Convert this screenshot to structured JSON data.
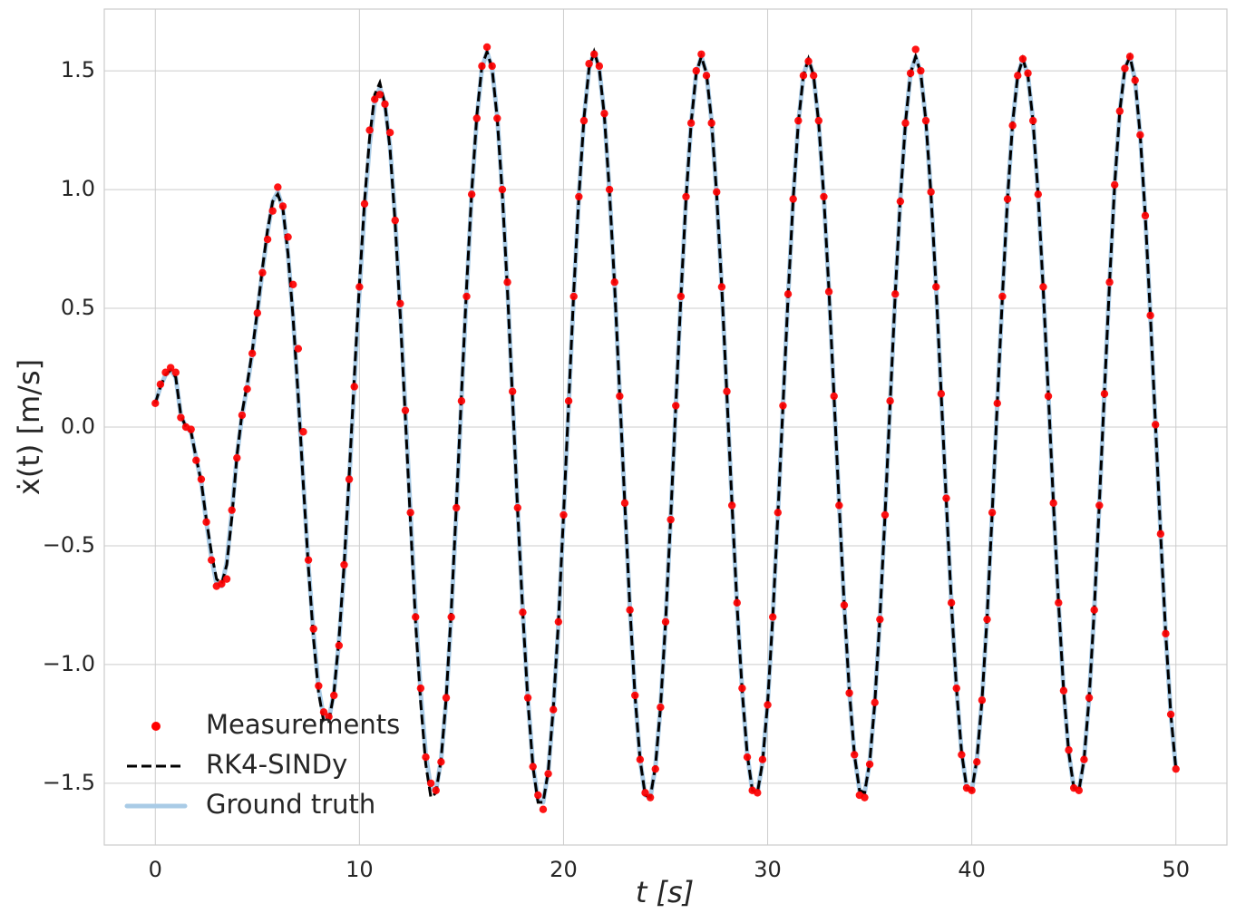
{
  "chart_data": {
    "type": "line",
    "xlabel": "ẋ(t) [m/s]",
    "xaxis_label": "t [s]",
    "xlim": [
      -2.5,
      52.5
    ],
    "xticks": [
      0,
      10,
      20,
      30,
      40,
      50
    ],
    "ylim": [
      -1.76,
      1.76
    ],
    "yticks": [
      {
        "value": -1.5,
        "label": "−1.5"
      },
      {
        "value": -1.0,
        "label": "−1.0"
      },
      {
        "value": -0.5,
        "label": "−0.5"
      },
      {
        "value": 0.0,
        "label": "0.0"
      },
      {
        "value": 0.5,
        "label": "0.5"
      },
      {
        "value": 1.0,
        "label": "1.0"
      },
      {
        "value": 1.5,
        "label": "1.5"
      }
    ],
    "grid": true,
    "legend": "lower left",
    "x": [
      0,
      0.25,
      0.5,
      0.75,
      1,
      1.25,
      1.5,
      1.75,
      2,
      2.25,
      2.5,
      2.75,
      3,
      3.25,
      3.5,
      3.75,
      4,
      4.25,
      4.5,
      4.75,
      5,
      5.25,
      5.5,
      5.75,
      6,
      6.25,
      6.5,
      6.75,
      7,
      7.25,
      7.5,
      7.75,
      8,
      8.25,
      8.5,
      8.75,
      9,
      9.25,
      9.5,
      9.75,
      10,
      10.25,
      10.5,
      10.75,
      11,
      11.25,
      11.5,
      11.75,
      12,
      12.25,
      12.5,
      12.75,
      13,
      13.25,
      13.5,
      13.75,
      14,
      14.25,
      14.5,
      14.75,
      15,
      15.25,
      15.5,
      15.75,
      16,
      16.25,
      16.5,
      16.75,
      17,
      17.25,
      17.5,
      17.75,
      18,
      18.25,
      18.5,
      18.75,
      19,
      19.25,
      19.5,
      19.75,
      20,
      20.25,
      20.5,
      20.75,
      21,
      21.25,
      21.5,
      21.75,
      22,
      22.25,
      22.5,
      22.75,
      23,
      23.25,
      23.5,
      23.75,
      24,
      24.25,
      24.5,
      24.75,
      25,
      25.25,
      25.5,
      25.75,
      26,
      26.25,
      26.5,
      26.75,
      27,
      27.25,
      27.5,
      27.75,
      28,
      28.25,
      28.5,
      28.75,
      29,
      29.25,
      29.5,
      29.75,
      30,
      30.25,
      30.5,
      30.75,
      31,
      31.25,
      31.5,
      31.75,
      32,
      32.25,
      32.5,
      32.75,
      33,
      33.25,
      33.5,
      33.75,
      34,
      34.25,
      34.5,
      34.75,
      35,
      35.25,
      35.5,
      35.75,
      36,
      36.25,
      36.5,
      36.75,
      37,
      37.25,
      37.5,
      37.75,
      38,
      38.25,
      38.5,
      38.75,
      39,
      39.25,
      39.5,
      39.75,
      40,
      40.25,
      40.5,
      40.75,
      41,
      41.25,
      41.5,
      41.75,
      42,
      42.25,
      42.5,
      42.75,
      43,
      43.25,
      43.5,
      43.75,
      44,
      44.25,
      44.5,
      44.75,
      45,
      45.25,
      45.5,
      45.75,
      46,
      46.25,
      46.5,
      46.75,
      47,
      47.25,
      47.5,
      47.75,
      48,
      48.25,
      48.5,
      48.75,
      49,
      49.25,
      49.5,
      49.75,
      50
    ],
    "series": [
      {
        "name": "Ground truth",
        "color": "#a9cbe6",
        "linestyle": "solid",
        "values": [
          0.1,
          0.17,
          0.22,
          0.24,
          0.21,
          0.05,
          0.0,
          -0.02,
          -0.13,
          -0.23,
          -0.4,
          -0.55,
          -0.66,
          -0.67,
          -0.57,
          -0.36,
          -0.12,
          0.05,
          0.17,
          0.31,
          0.48,
          0.66,
          0.82,
          0.95,
          0.99,
          0.92,
          0.73,
          0.46,
          0.13,
          -0.23,
          -0.58,
          -0.87,
          -1.1,
          -1.22,
          -1.23,
          -1.12,
          -0.9,
          -0.6,
          -0.22,
          0.18,
          0.57,
          0.92,
          1.19,
          1.37,
          1.43,
          1.36,
          1.18,
          0.88,
          0.5,
          0.07,
          -0.36,
          -0.78,
          -1.12,
          -1.38,
          -1.52,
          -1.53,
          -1.4,
          -1.15,
          -0.79,
          -0.35,
          0.12,
          0.57,
          0.98,
          1.3,
          1.51,
          1.58,
          1.51,
          1.31,
          0.99,
          0.59,
          0.13,
          -0.34,
          -0.77,
          -1.14,
          -1.42,
          -1.57,
          -1.58,
          -1.45,
          -1.19,
          -0.83,
          -0.38,
          0.09,
          0.56,
          0.97,
          1.3,
          1.51,
          1.58,
          1.51,
          1.31,
          0.99,
          0.6,
          0.14,
          -0.32,
          -0.76,
          -1.13,
          -1.4,
          -1.55,
          -1.56,
          -1.43,
          -1.18,
          -0.82,
          -0.38,
          0.09,
          0.55,
          0.96,
          1.28,
          1.49,
          1.56,
          1.49,
          1.29,
          0.98,
          0.59,
          0.14,
          -0.32,
          -0.75,
          -1.11,
          -1.38,
          -1.53,
          -1.54,
          -1.41,
          -1.16,
          -0.8,
          -0.37,
          0.09,
          0.55,
          0.96,
          1.28,
          1.48,
          1.55,
          1.48,
          1.28,
          0.97,
          0.58,
          0.13,
          -0.32,
          -0.75,
          -1.11,
          -1.38,
          -1.53,
          -1.54,
          -1.41,
          -1.16,
          -0.8,
          -0.37,
          0.1,
          0.56,
          0.96,
          1.28,
          1.49,
          1.56,
          1.49,
          1.29,
          0.98,
          0.59,
          0.14,
          -0.31,
          -0.74,
          -1.1,
          -1.37,
          -1.52,
          -1.53,
          -1.4,
          -1.15,
          -0.8,
          -0.36,
          0.1,
          0.55,
          0.96,
          1.28,
          1.48,
          1.55,
          1.48,
          1.29,
          0.98,
          0.58,
          0.14,
          -0.32,
          -0.74,
          -1.11,
          -1.37,
          -1.52,
          -1.53,
          -1.4,
          -1.14,
          -0.77,
          -0.32,
          0.15,
          0.61,
          1.02,
          1.33,
          1.51,
          1.56,
          1.46,
          1.23,
          0.89,
          0.47,
          0.01,
          -0.45,
          -0.87,
          -1.21,
          -1.44
        ]
      },
      {
        "name": "RK4-SINDy",
        "color": "#000000",
        "linestyle": "dashed",
        "values": [
          0.1,
          0.17,
          0.22,
          0.24,
          0.21,
          0.05,
          0.0,
          -0.02,
          -0.13,
          -0.23,
          -0.39,
          -0.53,
          -0.64,
          -0.66,
          -0.58,
          -0.38,
          -0.12,
          0.06,
          0.18,
          0.32,
          0.49,
          0.67,
          0.83,
          0.95,
          0.98,
          0.92,
          0.73,
          0.46,
          0.13,
          -0.24,
          -0.59,
          -0.89,
          -1.12,
          -1.24,
          -1.24,
          -1.12,
          -0.89,
          -0.58,
          -0.2,
          0.21,
          0.6,
          0.95,
          1.22,
          1.4,
          1.45,
          1.36,
          1.17,
          0.86,
          0.47,
          0.04,
          -0.4,
          -0.82,
          -1.16,
          -1.42,
          -1.56,
          -1.54,
          -1.4,
          -1.14,
          -0.77,
          -0.33,
          0.14,
          0.59,
          0.99,
          1.31,
          1.52,
          1.58,
          1.51,
          1.3,
          0.98,
          0.58,
          0.12,
          -0.35,
          -0.78,
          -1.15,
          -1.43,
          -1.58,
          -1.58,
          -1.45,
          -1.18,
          -0.82,
          -0.37,
          0.1,
          0.57,
          0.97,
          1.3,
          1.51,
          1.58,
          1.51,
          1.31,
          0.99,
          0.6,
          0.14,
          -0.32,
          -0.76,
          -1.13,
          -1.4,
          -1.55,
          -1.56,
          -1.43,
          -1.18,
          -0.82,
          -0.38,
          0.09,
          0.55,
          0.96,
          1.28,
          1.49,
          1.56,
          1.49,
          1.29,
          0.98,
          0.59,
          0.14,
          -0.32,
          -0.75,
          -1.11,
          -1.38,
          -1.53,
          -1.54,
          -1.41,
          -1.16,
          -0.8,
          -0.37,
          0.09,
          0.55,
          0.96,
          1.28,
          1.48,
          1.55,
          1.48,
          1.28,
          0.97,
          0.58,
          0.13,
          -0.32,
          -0.75,
          -1.11,
          -1.38,
          -1.53,
          -1.54,
          -1.41,
          -1.16,
          -0.8,
          -0.37,
          0.1,
          0.56,
          0.96,
          1.28,
          1.49,
          1.56,
          1.49,
          1.29,
          0.98,
          0.59,
          0.14,
          -0.31,
          -0.74,
          -1.1,
          -1.37,
          -1.52,
          -1.53,
          -1.4,
          -1.15,
          -0.8,
          -0.36,
          0.1,
          0.55,
          0.96,
          1.28,
          1.48,
          1.55,
          1.48,
          1.29,
          0.98,
          0.58,
          0.14,
          -0.32,
          -0.74,
          -1.11,
          -1.37,
          -1.52,
          -1.53,
          -1.4,
          -1.14,
          -0.77,
          -0.32,
          0.15,
          0.61,
          1.02,
          1.33,
          1.51,
          1.56,
          1.46,
          1.23,
          0.89,
          0.47,
          0.01,
          -0.45,
          -0.87,
          -1.21,
          -1.44
        ]
      },
      {
        "name": "Measurements",
        "color": "#ff0000",
        "linestyle": "none",
        "values": [
          0.1,
          0.18,
          0.23,
          0.25,
          0.23,
          0.04,
          0.0,
          -0.01,
          -0.14,
          -0.22,
          -0.4,
          -0.56,
          -0.67,
          -0.66,
          -0.64,
          -0.35,
          -0.13,
          0.05,
          0.16,
          0.31,
          0.48,
          0.65,
          0.79,
          0.91,
          1.01,
          0.93,
          0.8,
          0.6,
          0.33,
          -0.02,
          -0.56,
          -0.85,
          -1.09,
          -1.2,
          -1.22,
          -1.13,
          -0.92,
          -0.58,
          -0.22,
          0.17,
          0.59,
          0.94,
          1.25,
          1.38,
          1.4,
          1.36,
          1.24,
          0.87,
          0.52,
          0.07,
          -0.36,
          -0.8,
          -1.1,
          -1.39,
          -1.5,
          -1.53,
          -1.41,
          -1.14,
          -0.8,
          -0.34,
          0.11,
          0.55,
          0.98,
          1.3,
          1.52,
          1.6,
          1.52,
          1.3,
          1.0,
          0.61,
          0.15,
          -0.34,
          -0.78,
          -1.14,
          -1.43,
          -1.55,
          -1.61,
          -1.46,
          -1.19,
          -0.82,
          -0.37,
          0.11,
          0.55,
          0.97,
          1.29,
          1.53,
          1.57,
          1.52,
          1.32,
          1.0,
          0.61,
          0.13,
          -0.32,
          -0.77,
          -1.13,
          -1.4,
          -1.54,
          -1.56,
          -1.44,
          -1.18,
          -0.82,
          -0.39,
          0.09,
          0.55,
          0.97,
          1.28,
          1.5,
          1.57,
          1.48,
          1.28,
          0.99,
          0.59,
          0.15,
          -0.33,
          -0.74,
          -1.1,
          -1.39,
          -1.53,
          -1.54,
          -1.4,
          -1.17,
          -0.8,
          -0.36,
          0.09,
          0.56,
          0.96,
          1.29,
          1.48,
          1.54,
          1.48,
          1.29,
          0.97,
          0.57,
          0.13,
          -0.33,
          -0.75,
          -1.12,
          -1.38,
          -1.55,
          -1.56,
          -1.42,
          -1.16,
          -0.81,
          -0.37,
          0.11,
          0.56,
          0.95,
          1.28,
          1.49,
          1.59,
          1.5,
          1.29,
          0.99,
          0.59,
          0.14,
          -0.3,
          -0.74,
          -1.1,
          -1.38,
          -1.52,
          -1.53,
          -1.41,
          -1.15,
          -0.81,
          -0.36,
          0.1,
          0.55,
          0.96,
          1.27,
          1.48,
          1.55,
          1.49,
          1.29,
          0.98,
          0.59,
          0.13,
          -0.32,
          -0.74,
          -1.11,
          -1.36,
          -1.52,
          -1.53,
          -1.4,
          -1.14,
          -0.77,
          -0.33,
          0.14,
          0.61,
          1.02,
          1.33,
          1.51,
          1.56,
          1.46,
          1.23,
          0.89,
          0.47,
          0.01,
          -0.45,
          -0.87,
          -1.21,
          -1.44
        ]
      }
    ]
  }
}
